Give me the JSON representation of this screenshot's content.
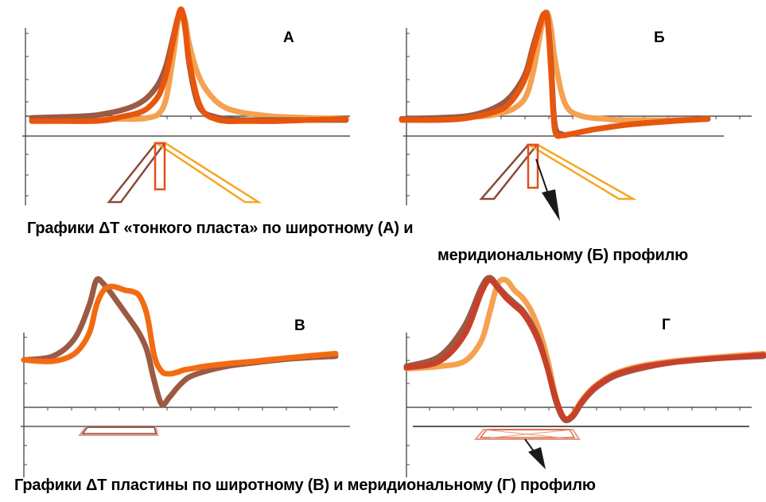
{
  "captions": {
    "top_line1": "Графики ΔТ «тонкого пласта» по широтному (А) и",
    "top_line2": "меридиональному (Б) профилю",
    "bottom": "Графики ΔТ пластины по широтному (В) и меридиональному (Г) профилю"
  },
  "colors": {
    "brown": "#9a5a44",
    "orange": "#f26b12",
    "light_orange": "#f5a150",
    "dark_orange": "#e8560d",
    "red": "#c8402a",
    "body_brown": "#8a4a36",
    "body_orange": "#f5a623",
    "body_red": "#e2501c",
    "body_pink": "#e49a86",
    "arrow": "#1a1a1a",
    "axis": "#333333"
  },
  "chart_data": [
    {
      "panel": "А",
      "type": "line",
      "title": "А",
      "x": [
        -2.0,
        -1.5,
        -1.2,
        -1.0,
        -0.8,
        -0.6,
        -0.45,
        -0.3,
        -0.2,
        -0.1,
        -0.05,
        0.0,
        0.05,
        0.1,
        0.2,
        0.3,
        0.45,
        0.6,
        0.8,
        1.0,
        1.3,
        1.7,
        2.2
      ],
      "xlim": [
        -2.0,
        2.2
      ],
      "ylim": [
        -0.2,
        1.0
      ],
      "series": [
        {
          "color": "light_orange",
          "width": 7,
          "values": [
            0.0,
            0.0,
            0.0,
            0.0,
            0.0,
            0.0,
            0.01,
            0.05,
            0.2,
            0.62,
            0.88,
            0.98,
            0.9,
            0.7,
            0.45,
            0.3,
            0.17,
            0.1,
            0.06,
            0.04,
            0.02,
            0.01,
            0.0
          ]
        },
        {
          "color": "brown",
          "width": 7,
          "values": [
            0.01,
            0.02,
            0.03,
            0.05,
            0.08,
            0.13,
            0.2,
            0.33,
            0.5,
            0.78,
            0.92,
            1.0,
            0.84,
            0.52,
            0.18,
            0.06,
            0.02,
            0.0,
            -0.01,
            -0.01,
            -0.01,
            -0.01,
            -0.01
          ]
        },
        {
          "color": "dark_orange",
          "width": 7,
          "values": [
            -0.02,
            -0.02,
            -0.02,
            -0.01,
            0.02,
            0.05,
            0.1,
            0.22,
            0.42,
            0.75,
            0.92,
            1.0,
            0.82,
            0.55,
            0.22,
            0.06,
            0.0,
            -0.02,
            -0.02,
            -0.02,
            -0.02,
            -0.01,
            0.0
          ]
        }
      ]
    },
    {
      "panel": "Б",
      "type": "line",
      "title": "Б",
      "x": [
        -2.0,
        -1.5,
        -1.2,
        -1.0,
        -0.8,
        -0.6,
        -0.45,
        -0.3,
        -0.2,
        -0.1,
        -0.05,
        0.0,
        0.05,
        0.1,
        0.2,
        0.3,
        0.45,
        0.6,
        0.8,
        1.0,
        1.3,
        1.7,
        2.2
      ],
      "xlim": [
        -2.0,
        2.2
      ],
      "ylim": [
        -0.2,
        1.0
      ],
      "series": [
        {
          "color": "light_orange",
          "width": 7,
          "values": [
            0.0,
            0.0,
            0.01,
            0.02,
            0.03,
            0.06,
            0.1,
            0.2,
            0.42,
            0.78,
            0.93,
            0.97,
            0.82,
            0.55,
            0.22,
            0.08,
            0.03,
            0.01,
            0.0,
            -0.01,
            -0.01,
            -0.01,
            0.0
          ]
        },
        {
          "color": "brown",
          "width": 7,
          "values": [
            0.0,
            0.01,
            0.02,
            0.04,
            0.08,
            0.15,
            0.25,
            0.42,
            0.66,
            0.88,
            0.96,
            0.92,
            0.5,
            -0.05,
            -0.14,
            -0.14,
            -0.12,
            -0.1,
            -0.08,
            -0.06,
            -0.04,
            -0.02,
            0.0
          ]
        },
        {
          "color": "dark_orange",
          "width": 7,
          "values": [
            -0.01,
            -0.01,
            0.0,
            0.02,
            0.05,
            0.1,
            0.2,
            0.38,
            0.62,
            0.86,
            0.96,
            0.9,
            0.42,
            -0.1,
            -0.15,
            -0.14,
            -0.12,
            -0.1,
            -0.08,
            -0.06,
            -0.04,
            -0.02,
            0.0
          ]
        }
      ]
    },
    {
      "panel": "В",
      "type": "line",
      "title": "В",
      "x": [
        -2.0,
        -1.6,
        -1.3,
        -1.1,
        -1.0,
        -0.9,
        -0.8,
        -0.7,
        -0.6,
        -0.5,
        -0.4,
        -0.3,
        -0.2,
        -0.1,
        0.0,
        0.1,
        0.2,
        0.3,
        0.5,
        0.8,
        1.2,
        1.7,
        2.3
      ],
      "xlim": [
        -2.0,
        2.3
      ],
      "ylim": [
        -0.15,
        1.0
      ],
      "series": [
        {
          "color": "brown",
          "width": 7,
          "values": [
            0.35,
            0.38,
            0.52,
            0.78,
            0.98,
            0.95,
            0.88,
            0.8,
            0.72,
            0.64,
            0.55,
            0.42,
            0.18,
            0.0,
            0.05,
            0.12,
            0.18,
            0.22,
            0.26,
            0.3,
            0.33,
            0.36,
            0.38
          ]
        },
        {
          "color": "orange",
          "width": 7,
          "values": [
            0.35,
            0.34,
            0.4,
            0.56,
            0.78,
            0.9,
            0.93,
            0.92,
            0.9,
            0.89,
            0.85,
            0.7,
            0.38,
            0.26,
            0.24,
            0.25,
            0.27,
            0.28,
            0.3,
            0.32,
            0.34,
            0.37,
            0.4
          ]
        }
      ]
    },
    {
      "panel": "Г",
      "type": "line",
      "title": "Г",
      "x": [
        -2.0,
        -1.6,
        -1.3,
        -1.1,
        -1.0,
        -0.9,
        -0.8,
        -0.7,
        -0.6,
        -0.5,
        -0.4,
        -0.3,
        -0.2,
        -0.1,
        0.0,
        0.1,
        0.2,
        0.3,
        0.5,
        0.8,
        1.2,
        1.7,
        2.3
      ],
      "xlim": [
        -2.0,
        2.3
      ],
      "ylim": [
        -0.15,
        1.0
      ],
      "series": [
        {
          "color": "light_orange",
          "width": 7,
          "values": [
            0.28,
            0.3,
            0.34,
            0.5,
            0.72,
            0.95,
            0.98,
            0.9,
            0.84,
            0.74,
            0.58,
            0.35,
            0.05,
            -0.12,
            -0.08,
            0.02,
            0.1,
            0.16,
            0.24,
            0.3,
            0.34,
            0.37,
            0.4
          ]
        },
        {
          "color": "brown",
          "width": 7,
          "values": [
            0.3,
            0.38,
            0.62,
            0.92,
            1.0,
            0.93,
            0.86,
            0.8,
            0.74,
            0.64,
            0.5,
            0.28,
            0.02,
            -0.12,
            -0.1,
            0.0,
            0.08,
            0.14,
            0.22,
            0.28,
            0.33,
            0.36,
            0.38
          ]
        },
        {
          "color": "red",
          "width": 7,
          "values": [
            0.29,
            0.34,
            0.55,
            0.88,
            0.98,
            0.92,
            0.84,
            0.78,
            0.72,
            0.62,
            0.48,
            0.28,
            0.04,
            -0.11,
            -0.09,
            0.01,
            0.09,
            0.15,
            0.23,
            0.29,
            0.33,
            0.36,
            0.39
          ]
        }
      ]
    }
  ]
}
